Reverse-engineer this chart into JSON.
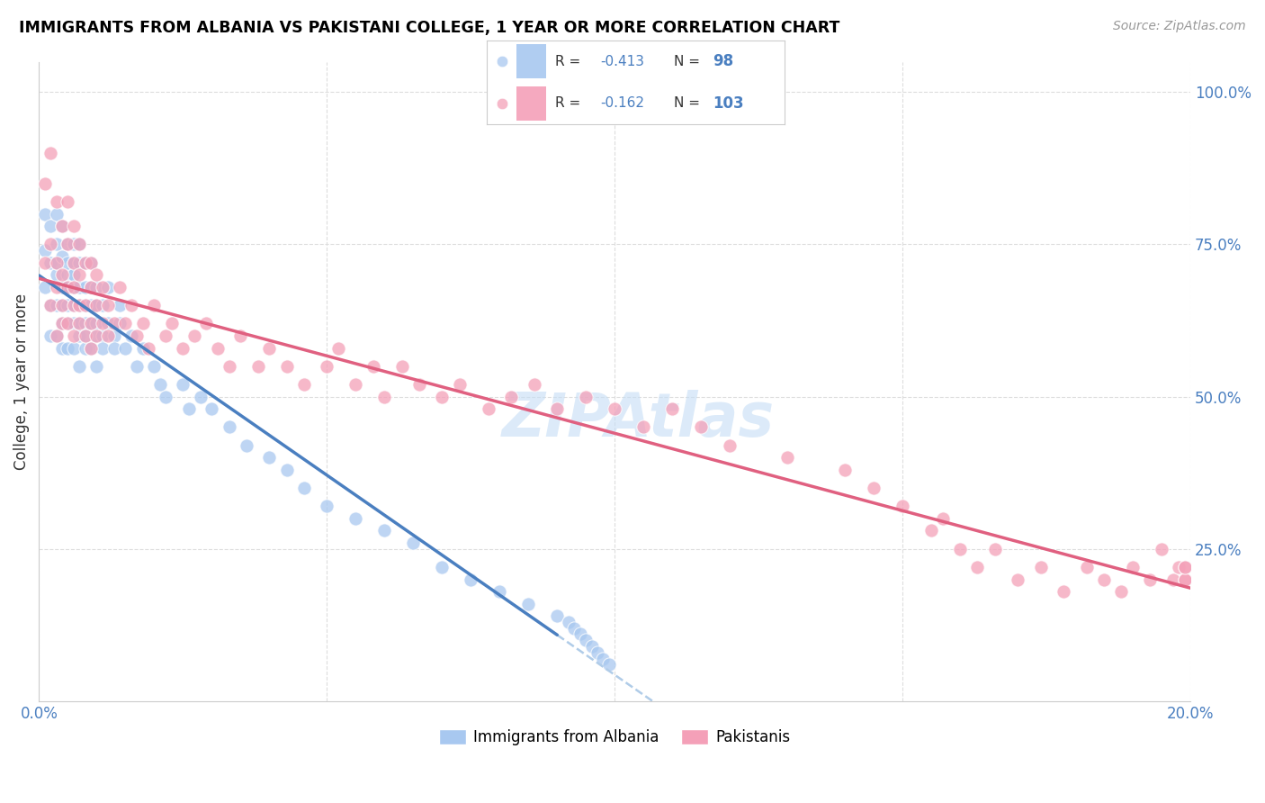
{
  "title": "IMMIGRANTS FROM ALBANIA VS PAKISTANI COLLEGE, 1 YEAR OR MORE CORRELATION CHART",
  "source": "Source: ZipAtlas.com",
  "ylabel": "College, 1 year or more",
  "xlim": [
    0.0,
    0.2
  ],
  "ylim": [
    0.0,
    1.05
  ],
  "albania_color": "#a8c8f0",
  "pakistan_color": "#f4a0b8",
  "albania_line_color": "#4a7fc0",
  "pakistan_line_color": "#e06080",
  "dashed_line_color": "#b0cce8",
  "albania_R": "-0.413",
  "albania_N": "98",
  "pakistan_R": "-0.162",
  "pakistan_N": "103",
  "r_color": "#4a7fc0",
  "n_color": "#4a7fc0",
  "watermark": "ZIPAtlas",
  "legend_label_albania": "Immigrants from Albania",
  "legend_label_pakistan": "Pakistanis",
  "legend_r_label": "R = ",
  "legend_n_label": "N = ",
  "albania_points_x": [
    0.001,
    0.001,
    0.001,
    0.002,
    0.002,
    0.002,
    0.002,
    0.003,
    0.003,
    0.003,
    0.003,
    0.003,
    0.003,
    0.004,
    0.004,
    0.004,
    0.004,
    0.004,
    0.004,
    0.005,
    0.005,
    0.005,
    0.005,
    0.005,
    0.005,
    0.005,
    0.006,
    0.006,
    0.006,
    0.006,
    0.006,
    0.006,
    0.006,
    0.007,
    0.007,
    0.007,
    0.007,
    0.007,
    0.007,
    0.007,
    0.008,
    0.008,
    0.008,
    0.008,
    0.008,
    0.008,
    0.009,
    0.009,
    0.009,
    0.009,
    0.009,
    0.01,
    0.01,
    0.01,
    0.01,
    0.01,
    0.011,
    0.011,
    0.011,
    0.012,
    0.012,
    0.013,
    0.013,
    0.014,
    0.014,
    0.015,
    0.016,
    0.017,
    0.018,
    0.02,
    0.021,
    0.022,
    0.025,
    0.026,
    0.028,
    0.03,
    0.033,
    0.036,
    0.04,
    0.043,
    0.046,
    0.05,
    0.055,
    0.06,
    0.065,
    0.07,
    0.075,
    0.08,
    0.085,
    0.09,
    0.092,
    0.093,
    0.094,
    0.095,
    0.096,
    0.097,
    0.098,
    0.099
  ],
  "albania_points_y": [
    0.74,
    0.8,
    0.68,
    0.72,
    0.65,
    0.78,
    0.6,
    0.7,
    0.75,
    0.65,
    0.8,
    0.72,
    0.6,
    0.68,
    0.73,
    0.65,
    0.78,
    0.62,
    0.58,
    0.7,
    0.75,
    0.68,
    0.62,
    0.72,
    0.65,
    0.58,
    0.72,
    0.68,
    0.62,
    0.75,
    0.65,
    0.58,
    0.7,
    0.72,
    0.68,
    0.62,
    0.65,
    0.6,
    0.75,
    0.55,
    0.68,
    0.62,
    0.72,
    0.65,
    0.58,
    0.6,
    0.68,
    0.62,
    0.72,
    0.58,
    0.65,
    0.65,
    0.6,
    0.68,
    0.62,
    0.55,
    0.65,
    0.6,
    0.58,
    0.62,
    0.68,
    0.6,
    0.58,
    0.62,
    0.65,
    0.58,
    0.6,
    0.55,
    0.58,
    0.55,
    0.52,
    0.5,
    0.52,
    0.48,
    0.5,
    0.48,
    0.45,
    0.42,
    0.4,
    0.38,
    0.35,
    0.32,
    0.3,
    0.28,
    0.26,
    0.22,
    0.2,
    0.18,
    0.16,
    0.14,
    0.13,
    0.12,
    0.11,
    0.1,
    0.09,
    0.08,
    0.07,
    0.06
  ],
  "pakistan_points_x": [
    0.001,
    0.001,
    0.002,
    0.002,
    0.002,
    0.003,
    0.003,
    0.003,
    0.003,
    0.004,
    0.004,
    0.004,
    0.004,
    0.005,
    0.005,
    0.005,
    0.005,
    0.006,
    0.006,
    0.006,
    0.006,
    0.006,
    0.007,
    0.007,
    0.007,
    0.007,
    0.008,
    0.008,
    0.008,
    0.009,
    0.009,
    0.009,
    0.009,
    0.01,
    0.01,
    0.01,
    0.011,
    0.011,
    0.012,
    0.012,
    0.013,
    0.014,
    0.015,
    0.016,
    0.017,
    0.018,
    0.019,
    0.02,
    0.022,
    0.023,
    0.025,
    0.027,
    0.029,
    0.031,
    0.033,
    0.035,
    0.038,
    0.04,
    0.043,
    0.046,
    0.05,
    0.052,
    0.055,
    0.058,
    0.06,
    0.063,
    0.066,
    0.07,
    0.073,
    0.078,
    0.082,
    0.086,
    0.09,
    0.095,
    0.1,
    0.105,
    0.11,
    0.115,
    0.12,
    0.13,
    0.14,
    0.145,
    0.15,
    0.155,
    0.157,
    0.16,
    0.163,
    0.166,
    0.17,
    0.174,
    0.178,
    0.182,
    0.185,
    0.188,
    0.19,
    0.193,
    0.195,
    0.197,
    0.198,
    0.199,
    0.199,
    0.199,
    0.199
  ],
  "pakistan_points_y": [
    0.85,
    0.72,
    0.9,
    0.75,
    0.65,
    0.82,
    0.72,
    0.68,
    0.6,
    0.78,
    0.7,
    0.65,
    0.62,
    0.82,
    0.75,
    0.68,
    0.62,
    0.78,
    0.72,
    0.68,
    0.65,
    0.6,
    0.75,
    0.7,
    0.65,
    0.62,
    0.72,
    0.65,
    0.6,
    0.72,
    0.68,
    0.62,
    0.58,
    0.7,
    0.65,
    0.6,
    0.68,
    0.62,
    0.65,
    0.6,
    0.62,
    0.68,
    0.62,
    0.65,
    0.6,
    0.62,
    0.58,
    0.65,
    0.6,
    0.62,
    0.58,
    0.6,
    0.62,
    0.58,
    0.55,
    0.6,
    0.55,
    0.58,
    0.55,
    0.52,
    0.55,
    0.58,
    0.52,
    0.55,
    0.5,
    0.55,
    0.52,
    0.5,
    0.52,
    0.48,
    0.5,
    0.52,
    0.48,
    0.5,
    0.48,
    0.45,
    0.48,
    0.45,
    0.42,
    0.4,
    0.38,
    0.35,
    0.32,
    0.28,
    0.3,
    0.25,
    0.22,
    0.25,
    0.2,
    0.22,
    0.18,
    0.22,
    0.2,
    0.18,
    0.22,
    0.2,
    0.25,
    0.2,
    0.22,
    0.2,
    0.22,
    0.2,
    0.22
  ]
}
